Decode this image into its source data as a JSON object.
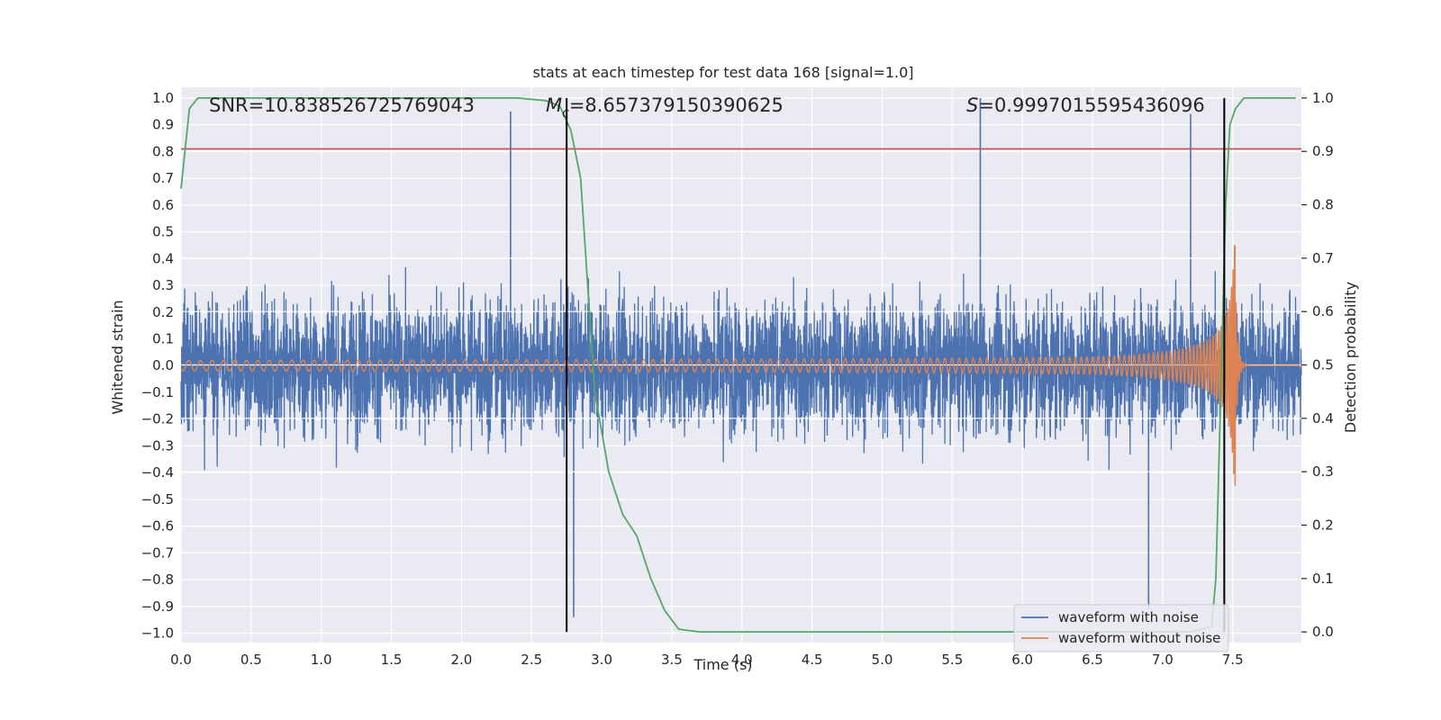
{
  "chart_data": {
    "type": "line",
    "title": "stats at each timestep for test data 168 [signal=1.0]",
    "xlabel": "Time (s)",
    "ylabel": "Whitened strain",
    "ylabel_right": "Detection probability",
    "xlim": [
      0.0,
      7.99
    ],
    "ylim": [
      -1.035,
      1.04
    ],
    "ylim_right": [
      -0.02,
      1.02
    ],
    "x_ticks": [
      0.0,
      0.5,
      1.0,
      1.5,
      2.0,
      2.5,
      3.0,
      3.5,
      4.0,
      4.5,
      5.0,
      5.5,
      6.0,
      6.5,
      7.0,
      7.5
    ],
    "x_tick_labels": [
      "0.0",
      "0.5",
      "1.0",
      "1.5",
      "2.0",
      "2.5",
      "3.0",
      "3.5",
      "4.0",
      "4.5",
      "5.0",
      "5.5",
      "6.0",
      "6.5",
      "7.0",
      "7.5"
    ],
    "y_ticks": [
      -1.0,
      -0.9,
      -0.8,
      -0.7,
      -0.6,
      -0.5,
      -0.4,
      -0.3,
      -0.2,
      -0.1,
      0.0,
      0.1,
      0.2,
      0.3,
      0.4,
      0.5,
      0.6,
      0.7,
      0.8,
      0.9,
      1.0
    ],
    "y_tick_labels": [
      "−1.0",
      "−0.9",
      "−0.8",
      "−0.7",
      "−0.6",
      "−0.5",
      "−0.4",
      "−0.3",
      "−0.2",
      "−0.1",
      "0.0",
      "0.1",
      "0.2",
      "0.3",
      "0.4",
      "0.5",
      "0.6",
      "0.7",
      "0.8",
      "0.9",
      "1.0"
    ],
    "y_right_ticks": [
      0.0,
      0.1,
      0.2,
      0.3,
      0.4,
      0.5,
      0.6,
      0.7,
      0.8,
      0.9,
      1.0
    ],
    "y_right_tick_labels": [
      "0.0",
      "0.1",
      "0.2",
      "0.3",
      "0.4",
      "0.5",
      "0.6",
      "0.7",
      "0.8",
      "0.9",
      "1.0"
    ],
    "annotations": {
      "snr": "SNR=10.838526725769043",
      "mc_symbol": "M",
      "mc_sub": "c",
      "mc_value": "=8.657379150390625",
      "s_symbol": "S",
      "s_value": "=0.9997015595436096"
    },
    "threshold_line_y": 0.81,
    "vertical_lines_x": [
      2.75,
      7.44
    ],
    "series": [
      {
        "name": "waveform with noise",
        "color": "#4c72b0",
        "description_envelope_typical": 0.4,
        "peak_values": [
          {
            "x": 2.35,
            "y": 0.95
          },
          {
            "x": 5.7,
            "y": 1.0
          },
          {
            "x": 7.2,
            "y": 0.94
          },
          {
            "x": 2.8,
            "y": -0.94
          },
          {
            "x": 6.9,
            "y": -0.91
          }
        ]
      },
      {
        "name": "waveform without noise",
        "color": "#dd8452",
        "chirp": {
          "start_amp": 0.02,
          "merger_x": 7.52,
          "merger_max": 0.45,
          "merger_min": -0.29,
          "start_freq_hz": 12
        }
      },
      {
        "name": "detection probability",
        "color": "#55a868",
        "axis": "right",
        "x": [
          0.0,
          0.06,
          0.12,
          0.3,
          2.4,
          2.6,
          2.7,
          2.78,
          2.85,
          2.95,
          3.05,
          3.15,
          3.25,
          3.35,
          3.45,
          3.55,
          3.7,
          7.2,
          7.35,
          7.38,
          7.42,
          7.45,
          7.48,
          7.52,
          7.58,
          7.65,
          7.95
        ],
        "y": [
          0.83,
          0.98,
          1.0,
          1.0,
          1.0,
          0.995,
          0.985,
          0.94,
          0.85,
          0.45,
          0.3,
          0.22,
          0.18,
          0.1,
          0.04,
          0.005,
          0.0,
          0.0,
          0.01,
          0.1,
          0.5,
          0.8,
          0.95,
          0.98,
          1.0,
          1.0,
          1.0
        ]
      }
    ],
    "legend": {
      "placement": "lower-right",
      "entries": [
        {
          "label": "waveform with noise",
          "color": "#4c72b0"
        },
        {
          "label": "waveform without noise",
          "color": "#dd8452"
        }
      ]
    },
    "colors": {
      "background": "#eaeaf2",
      "grid": "#ffffff",
      "threshold": "#c44e52",
      "vline": "#000000"
    },
    "grid": true
  }
}
